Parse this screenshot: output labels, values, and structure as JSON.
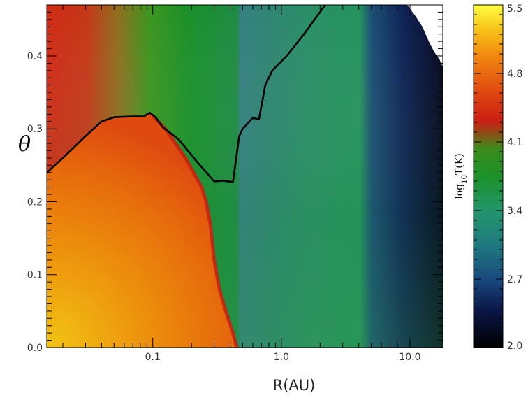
{
  "chart_data": {
    "type": "heatmap",
    "title": "",
    "xlabel": "R(AU)",
    "ylabel": "θ",
    "x_scale": "log",
    "xlim": [
      0.015,
      18
    ],
    "ylim": [
      0.0,
      0.47
    ],
    "x_ticks": [
      {
        "value": 0.1,
        "label": "0.1"
      },
      {
        "value": 1.0,
        "label": "1.0"
      },
      {
        "value": 10.0,
        "label": "10.0"
      }
    ],
    "y_ticks": [
      {
        "value": 0.0,
        "label": "0.0"
      },
      {
        "value": 0.1,
        "label": "0.1"
      },
      {
        "value": 0.2,
        "label": "0.2"
      },
      {
        "value": 0.3,
        "label": "0.3"
      },
      {
        "value": 0.4,
        "label": "0.4"
      }
    ],
    "colorbar": {
      "label_base": "log",
      "label_sub": "10",
      "label_rest": "T(K)",
      "range": [
        2.0,
        5.5
      ],
      "ticks": [
        {
          "value": 2.0,
          "label": "2.0"
        },
        {
          "value": 2.7,
          "label": "2.7"
        },
        {
          "value": 3.4,
          "label": "3.4"
        },
        {
          "value": 4.1,
          "label": "4.1"
        },
        {
          "value": 4.8,
          "label": "4.8"
        },
        {
          "value": 5.5,
          "label": "5.5"
        }
      ]
    },
    "contour": {
      "r": [
        0.015,
        0.02,
        0.03,
        0.04,
        0.05,
        0.07,
        0.085,
        0.095,
        0.105,
        0.12,
        0.16,
        0.22,
        0.3,
        0.35,
        0.42,
        0.47,
        0.5,
        0.6,
        0.67,
        0.75,
        0.85,
        1.1,
        1.5,
        1.9,
        2.2
      ],
      "theta": [
        0.24,
        0.26,
        0.29,
        0.31,
        0.316,
        0.317,
        0.317,
        0.322,
        0.316,
        0.302,
        0.285,
        0.255,
        0.228,
        0.229,
        0.227,
        0.29,
        0.3,
        0.315,
        0.313,
        0.36,
        0.38,
        0.4,
        0.43,
        0.455,
        0.47
      ]
    },
    "hot_boundary": {
      "theta": [
        0.318,
        0.3,
        0.26,
        0.22,
        0.2,
        0.17,
        0.12,
        0.08,
        0.05,
        0.02,
        0.0
      ],
      "r": [
        0.1,
        0.125,
        0.18,
        0.24,
        0.26,
        0.28,
        0.3,
        0.33,
        0.37,
        0.42,
        0.45
      ]
    },
    "outer_cut": {
      "r": [
        9.5,
        11,
        12.5,
        14,
        15.5,
        17,
        18
      ],
      "theta": [
        0.47,
        0.455,
        0.44,
        0.42,
        0.405,
        0.395,
        0.385
      ]
    }
  }
}
